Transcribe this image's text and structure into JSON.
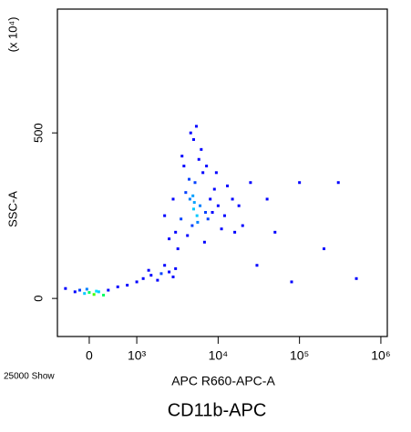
{
  "chart_data": {
    "type": "scatter",
    "xlabel": "APC R660-APC-A",
    "ylabel": "SSC-A",
    "ymultiplier": "(x 10⁴)",
    "footer_title": "CD11b-APC",
    "event_count": "25000 Show",
    "xscale": "biexponential",
    "xlim": [
      -670,
      1200000
    ],
    "ylim": [
      -115,
      874
    ],
    "xticks": [
      0,
      {
        "value": 1000,
        "label": "10³"
      },
      {
        "value": 10000,
        "label": "10⁴"
      },
      {
        "value": 100000,
        "label": "10⁵"
      },
      {
        "value": 1000000,
        "label": "10⁶"
      }
    ],
    "yticks": [
      0,
      500
    ],
    "x": [
      -300,
      -100,
      0,
      100,
      200,
      400,
      -500,
      600,
      300,
      -200,
      800,
      150,
      -50,
      1200,
      1500,
      2000,
      2500,
      1800,
      3000,
      1000,
      2200,
      1400,
      2800,
      5000,
      4500,
      5500,
      6000,
      4000,
      7000,
      3500,
      8000,
      5200,
      4800,
      6500,
      3000,
      9000,
      10000,
      12000,
      15000,
      2500,
      3800,
      4200,
      5800,
      7500,
      11000,
      6200,
      4400,
      3200,
      2800,
      13000,
      18000,
      20000,
      9500,
      5000,
      6800,
      8500,
      4600,
      3600,
      7200,
      5400,
      2200,
      16000,
      25000,
      5100,
      4900,
      5600,
      50000,
      100000,
      200000,
      300000,
      30000,
      80000,
      500000,
      40000
    ],
    "values": [
      20,
      15,
      18,
      12,
      20,
      25,
      30,
      35,
      10,
      25,
      40,
      22,
      28,
      60,
      70,
      75,
      80,
      55,
      90,
      50,
      100,
      85,
      65,
      270,
      300,
      250,
      280,
      320,
      260,
      240,
      300,
      350,
      220,
      380,
      200,
      330,
      280,
      250,
      300,
      180,
      400,
      190,
      420,
      240,
      210,
      450,
      360,
      150,
      300,
      340,
      280,
      220,
      380,
      480,
      170,
      260,
      500,
      430,
      400,
      520,
      250,
      200,
      350,
      290,
      310,
      230,
      200,
      350,
      150,
      350,
      100,
      50,
      60,
      300
    ],
    "colors": [
      "#0000ff",
      "#00c8ff",
      "#00ff60",
      "#40ff00",
      "#00c8ff",
      "#0000ff",
      "#0000ff",
      "#0000ff",
      "#00ff60",
      "#0040ff",
      "#0000ff",
      "#00e0ff",
      "#0080ff",
      "#0000ff",
      "#0000ff",
      "#0040ff",
      "#0000ff",
      "#0000ff",
      "#0000ff",
      "#0000ff",
      "#0000ff",
      "#0000ff",
      "#0000ff",
      "#00c8ff",
      "#0080ff",
      "#00c8ff",
      "#0080ff",
      "#0040ff",
      "#0040ff",
      "#0040ff",
      "#0000ff",
      "#0040ff",
      "#0040ff",
      "#0000ff",
      "#0000ff",
      "#0000ff",
      "#0000ff",
      "#0000ff",
      "#0000ff",
      "#0000ff",
      "#0000ff",
      "#0000ff",
      "#0000ff",
      "#0040ff",
      "#0000ff",
      "#0000ff",
      "#0040ff",
      "#0000ff",
      "#0000ff",
      "#0000ff",
      "#0000ff",
      "#0000ff",
      "#0000ff",
      "#0000ff",
      "#0000ff",
      "#0000ff",
      "#0000ff",
      "#0000ff",
      "#0000ff",
      "#0000ff",
      "#0000ff",
      "#0000ff",
      "#0000ff",
      "#00a0ff",
      "#00a0ff",
      "#0080ff",
      "#0000ff",
      "#0000ff",
      "#0000ff",
      "#0000ff",
      "#0000ff",
      "#0000ff",
      "#0000ff",
      "#0000ff"
    ]
  }
}
